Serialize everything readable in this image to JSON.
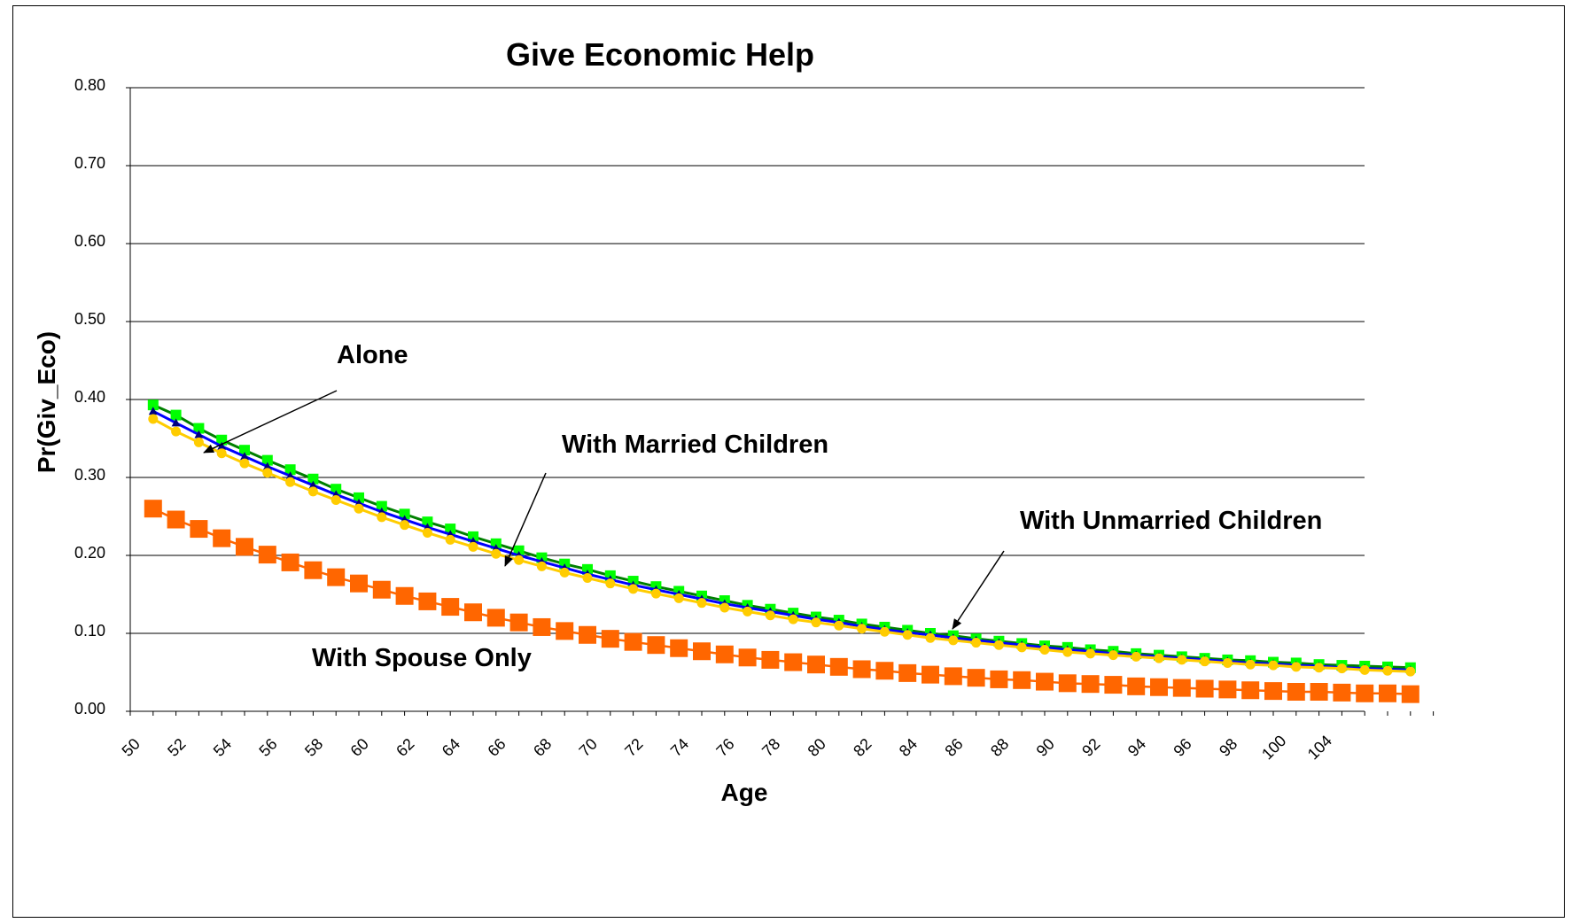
{
  "chart_data": {
    "type": "line",
    "title": "Give Economic Help",
    "xlabel": "Age",
    "ylabel": "Pr(Giv_Eco)",
    "ylim": [
      0,
      0.8
    ],
    "yticks": [
      "0.00",
      "0.10",
      "0.20",
      "0.30",
      "0.40",
      "0.50",
      "0.60",
      "0.70",
      "0.80"
    ],
    "xticks": [
      "50",
      "52",
      "54",
      "56",
      "58",
      "60",
      "62",
      "64",
      "66",
      "68",
      "70",
      "72",
      "74",
      "76",
      "78",
      "80",
      "82",
      "84",
      "86",
      "88",
      "90",
      "92",
      "94",
      "96",
      "98",
      "100",
      "104"
    ],
    "grid": "horizontal",
    "x": [
      51,
      52,
      53,
      54,
      55,
      56,
      57,
      58,
      59,
      60,
      61,
      62,
      63,
      64,
      65,
      66,
      67,
      68,
      69,
      70,
      71,
      72,
      73,
      74,
      75,
      76,
      77,
      78,
      79,
      80,
      81,
      82,
      83,
      84,
      85,
      86,
      87,
      88,
      89,
      90,
      91,
      92,
      93,
      94,
      95,
      96,
      97,
      98,
      99,
      100,
      101,
      102,
      103,
      104,
      105,
      106
    ],
    "series": [
      {
        "marker": "square",
        "color": "#00ff00",
        "line": "#008000",
        "values": [
          0.393,
          0.38,
          0.363,
          0.348,
          0.335,
          0.322,
          0.31,
          0.298,
          0.285,
          0.274,
          0.263,
          0.253,
          0.243,
          0.234,
          0.224,
          0.215,
          0.206,
          0.197,
          0.189,
          0.182,
          0.174,
          0.167,
          0.16,
          0.154,
          0.148,
          0.142,
          0.136,
          0.131,
          0.126,
          0.121,
          0.117,
          0.112,
          0.108,
          0.104,
          0.1,
          0.097,
          0.093,
          0.09,
          0.087,
          0.084,
          0.082,
          0.079,
          0.077,
          0.074,
          0.072,
          0.07,
          0.068,
          0.066,
          0.065,
          0.063,
          0.062,
          0.06,
          0.059,
          0.058,
          0.057,
          0.056
        ]
      },
      {
        "marker": "triangle",
        "color": "#000080",
        "line": "#0000ff",
        "values": [
          0.385,
          0.37,
          0.355,
          0.34,
          0.327,
          0.314,
          0.302,
          0.29,
          0.278,
          0.267,
          0.256,
          0.246,
          0.236,
          0.227,
          0.218,
          0.209,
          0.2,
          0.192,
          0.184,
          0.176,
          0.169,
          0.162,
          0.156,
          0.15,
          0.144,
          0.138,
          0.133,
          0.128,
          0.123,
          0.118,
          0.114,
          0.109,
          0.105,
          0.101,
          0.098,
          0.094,
          0.091,
          0.088,
          0.085,
          0.082,
          0.079,
          0.077,
          0.074,
          0.072,
          0.07,
          0.068,
          0.066,
          0.064,
          0.062,
          0.061,
          0.059,
          0.058,
          0.056,
          0.055,
          0.054,
          0.053
        ]
      },
      {
        "marker": "circle",
        "color": "#ffcc00",
        "line": "#ffcc00",
        "values": [
          0.375,
          0.359,
          0.345,
          0.331,
          0.318,
          0.306,
          0.294,
          0.282,
          0.271,
          0.26,
          0.249,
          0.239,
          0.229,
          0.22,
          0.211,
          0.202,
          0.194,
          0.186,
          0.178,
          0.171,
          0.164,
          0.157,
          0.151,
          0.145,
          0.139,
          0.133,
          0.128,
          0.123,
          0.118,
          0.114,
          0.11,
          0.106,
          0.102,
          0.098,
          0.094,
          0.091,
          0.088,
          0.085,
          0.082,
          0.079,
          0.076,
          0.074,
          0.072,
          0.07,
          0.068,
          0.066,
          0.064,
          0.062,
          0.06,
          0.059,
          0.057,
          0.056,
          0.055,
          0.053,
          0.052,
          0.051
        ]
      },
      {
        "marker": "square",
        "color": "#ff6600",
        "line": "#ff6600",
        "values": [
          0.26,
          0.246,
          0.234,
          0.222,
          0.211,
          0.201,
          0.191,
          0.181,
          0.172,
          0.164,
          0.156,
          0.148,
          0.141,
          0.134,
          0.127,
          0.12,
          0.114,
          0.108,
          0.103,
          0.098,
          0.093,
          0.089,
          0.085,
          0.081,
          0.077,
          0.073,
          0.069,
          0.066,
          0.063,
          0.06,
          0.057,
          0.054,
          0.052,
          0.049,
          0.047,
          0.045,
          0.043,
          0.041,
          0.04,
          0.038,
          0.036,
          0.035,
          0.034,
          0.032,
          0.031,
          0.03,
          0.029,
          0.028,
          0.027,
          0.026,
          0.025,
          0.025,
          0.024,
          0.023,
          0.023,
          0.022
        ]
      }
    ],
    "annotations": [
      {
        "text": "Alone"
      },
      {
        "text": "With Married Children"
      },
      {
        "text": "With Unmarried Children"
      },
      {
        "text": "With Spouse Only"
      }
    ]
  }
}
